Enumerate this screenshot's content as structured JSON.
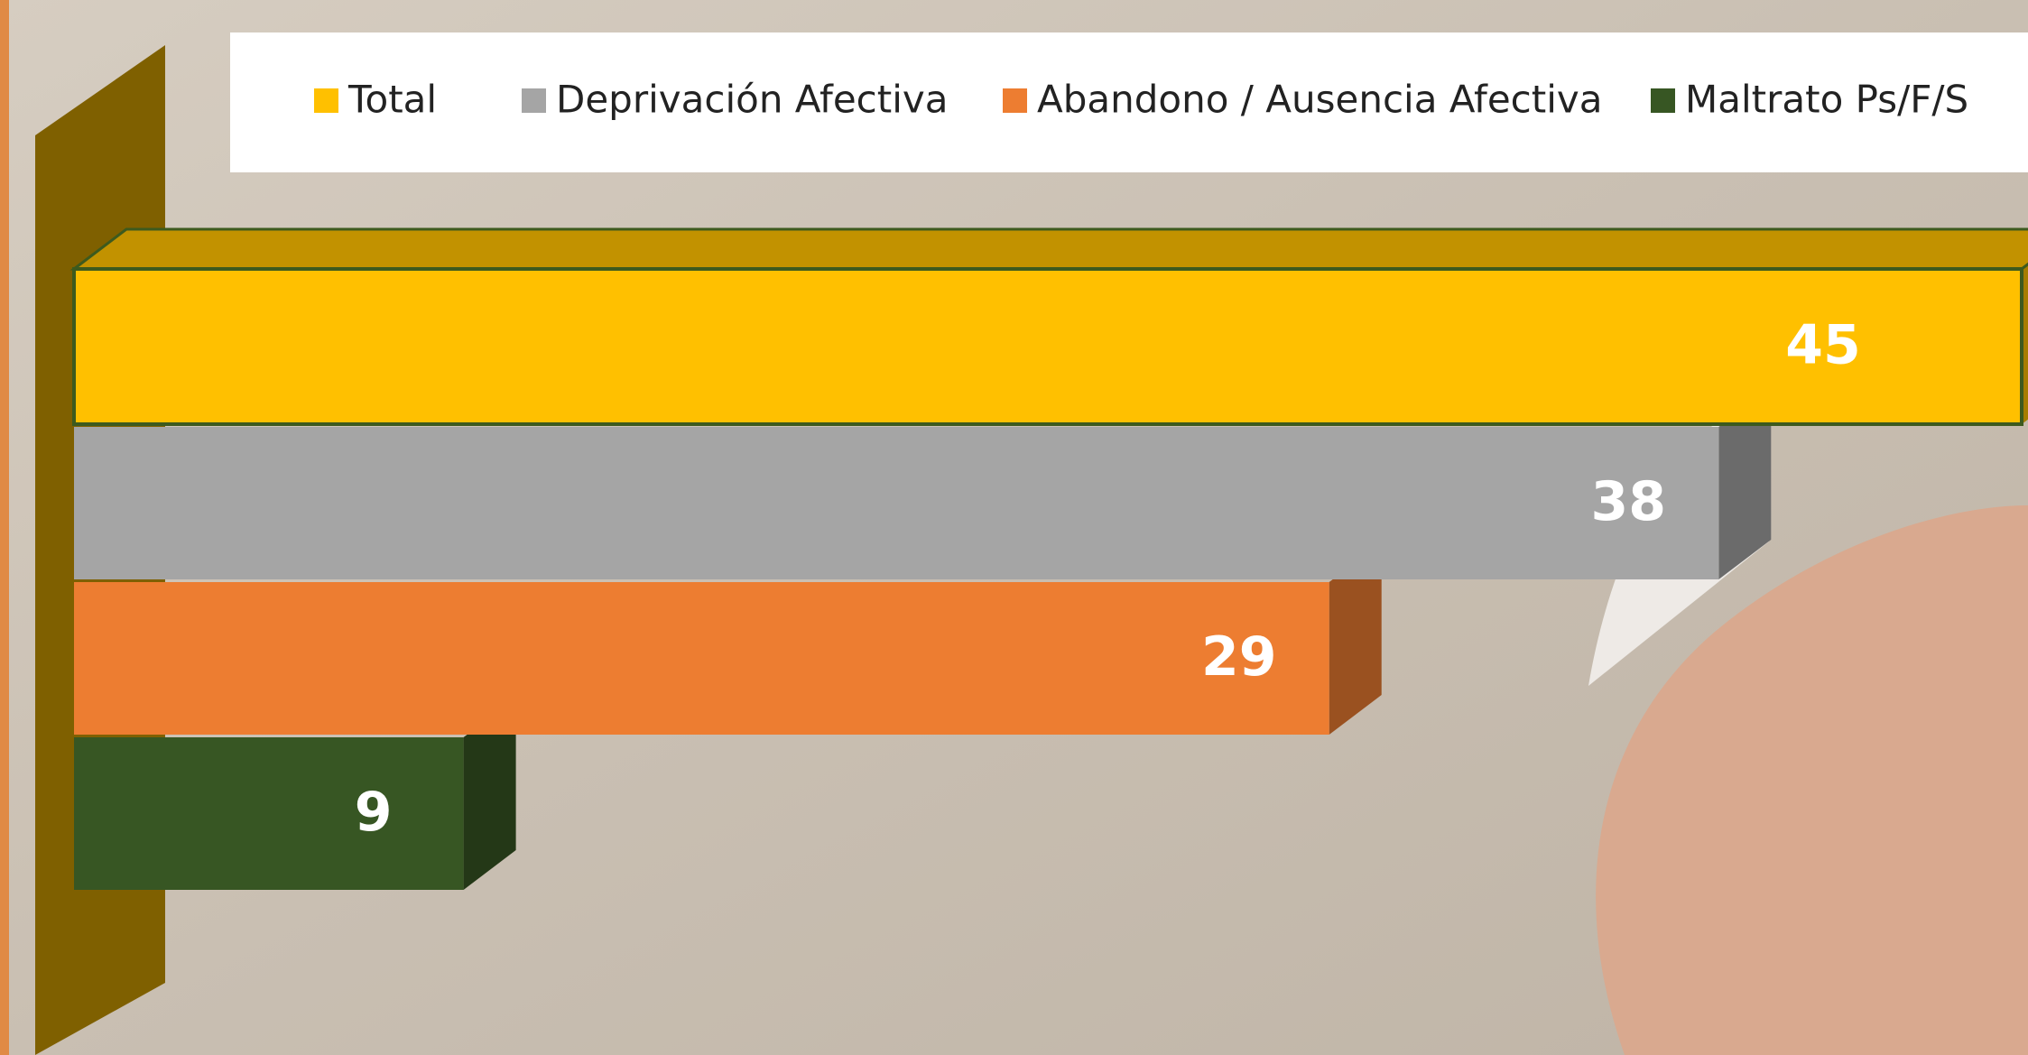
{
  "chart_data": {
    "type": "bar",
    "orientation": "horizontal",
    "series": [
      {
        "name": "Total",
        "color": "#FFC000",
        "values": [
          45
        ]
      },
      {
        "name": "Deprivación Afectiva",
        "color": "#A5A5A5",
        "values": [
          38
        ]
      },
      {
        "name": "Abandono / Ausencia Afectiva",
        "color": "#ED7D31",
        "values": [
          29
        ]
      },
      {
        "name": "Maltrato Ps/F/S",
        "color": "#375623",
        "values": [
          9
        ]
      }
    ],
    "legend": "top"
  }
}
